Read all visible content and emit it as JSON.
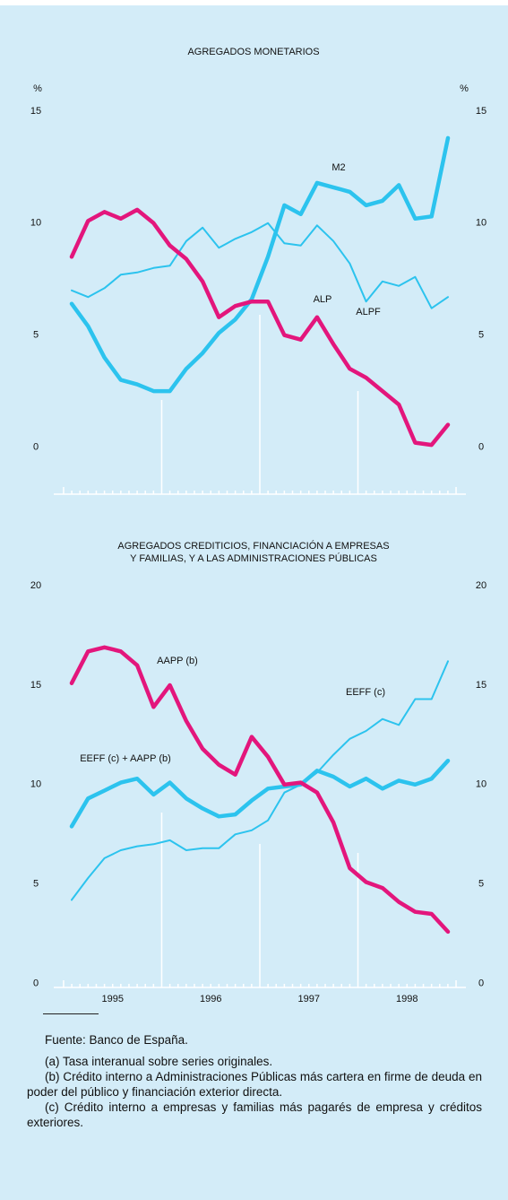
{
  "chart_data": [
    {
      "type": "line",
      "title": [
        "AGREGADOS MONETARIOS"
      ],
      "ylabel": "%",
      "xlim": [
        1994.9,
        1999.1
      ],
      "ylim": [
        -2.1,
        16
      ],
      "yticks": [
        0,
        5,
        10,
        15
      ],
      "x": [
        1995.083,
        1995.25,
        1995.417,
        1995.583,
        1995.75,
        1995.917,
        1996.083,
        1996.25,
        1996.417,
        1996.583,
        1996.75,
        1996.917,
        1997.083,
        1997.25,
        1997.417,
        1997.583,
        1997.75,
        1997.917,
        1998.083,
        1998.25,
        1998.417,
        1998.583,
        1998.75,
        1998.917
      ],
      "series": [
        {
          "name": "ALPF",
          "color": "#2cc3ee",
          "width": 2,
          "values": [
            7.0,
            6.7,
            7.1,
            7.7,
            7.8,
            8.0,
            8.1,
            9.2,
            9.8,
            8.9,
            9.3,
            9.6,
            10.0,
            9.1,
            9.0,
            9.9,
            9.2,
            8.2,
            6.5,
            7.4,
            7.2,
            7.6,
            6.2,
            6.7
          ]
        },
        {
          "name": "M2",
          "color": "#2cc3ee",
          "width": 4.5,
          "values": [
            6.4,
            5.4,
            4.0,
            3.0,
            2.8,
            2.5,
            2.5,
            3.5,
            4.2,
            5.1,
            5.7,
            6.6,
            8.5,
            10.8,
            10.4,
            11.8,
            11.6,
            11.4,
            10.8,
            11.0,
            11.7,
            10.2,
            10.3,
            13.8
          ]
        },
        {
          "name": "ALP",
          "color": "#e3167c",
          "width": 4.5,
          "values": [
            8.5,
            10.1,
            10.5,
            10.2,
            10.6,
            10.0,
            9.0,
            8.4,
            7.4,
            5.8,
            6.3,
            6.5,
            6.5,
            5.0,
            4.8,
            5.8,
            4.6,
            3.5,
            3.1,
            2.5,
            1.9,
            0.2,
            0.1,
            1.0
          ]
        }
      ]
    },
    {
      "type": "line",
      "title": [
        "AGREGADOS CREDITICIOS, FINANCIACIÓN A EMPRESAS",
        "Y FAMILIAS, Y A LAS ADMINISTRACIONES PÚBLICAS"
      ],
      "xlim": [
        1994.9,
        1999.1
      ],
      "ylim": [
        -0.2,
        20.5
      ],
      "yticks": [
        0,
        5,
        10,
        15,
        20
      ],
      "xticks": [
        {
          "value": 1995.5,
          "label": "1995"
        },
        {
          "value": 1996.5,
          "label": "1996"
        },
        {
          "value": 1997.5,
          "label": "1997"
        },
        {
          "value": 1998.5,
          "label": "1998"
        }
      ],
      "x": [
        1995.083,
        1995.25,
        1995.417,
        1995.583,
        1995.75,
        1995.917,
        1996.083,
        1996.25,
        1996.417,
        1996.583,
        1996.75,
        1996.917,
        1997.083,
        1997.25,
        1997.417,
        1997.583,
        1997.75,
        1997.917,
        1998.083,
        1998.25,
        1998.417,
        1998.583,
        1998.75,
        1998.917
      ],
      "series": [
        {
          "name": "EEFF (c)",
          "color": "#2cc3ee",
          "width": 2,
          "values": [
            4.2,
            5.3,
            6.3,
            6.7,
            6.9,
            7.0,
            7.2,
            6.7,
            6.8,
            6.8,
            7.5,
            7.7,
            8.2,
            9.6,
            10.0,
            10.6,
            11.5,
            12.3,
            12.7,
            13.3,
            13.0,
            14.3,
            14.3,
            16.2
          ]
        },
        {
          "name": "EEFF (c) + AAPP (b)",
          "color": "#2cc3ee",
          "width": 4.5,
          "values": [
            7.9,
            9.3,
            9.7,
            10.1,
            10.3,
            9.5,
            10.1,
            9.3,
            8.8,
            8.4,
            8.5,
            9.2,
            9.8,
            9.9,
            10.0,
            10.7,
            10.4,
            9.9,
            10.3,
            9.8,
            10.2,
            10.0,
            10.3,
            11.2
          ]
        },
        {
          "name": "AAPP (b)",
          "color": "#e3167c",
          "width": 4.5,
          "values": [
            15.1,
            16.7,
            16.9,
            16.7,
            16.0,
            13.9,
            15.0,
            13.2,
            11.8,
            11.0,
            10.5,
            12.4,
            11.4,
            10.0,
            10.1,
            9.6,
            8.1,
            5.8,
            5.1,
            4.8,
            4.1,
            3.6,
            3.5,
            2.6
          ]
        }
      ]
    }
  ],
  "footnotes": {
    "source": "Fuente:  Banco de España.",
    "notes": [
      "(a)    Tasa interanual sobre series originales.",
      "(b)    Crédito interno a Administraciones Públicas más cartera en firme de deuda en poder del público y financiación exterior directa.",
      "(c)    Crédito interno a empresas y familias más pagarés de empresa y créditos exteriores."
    ]
  }
}
